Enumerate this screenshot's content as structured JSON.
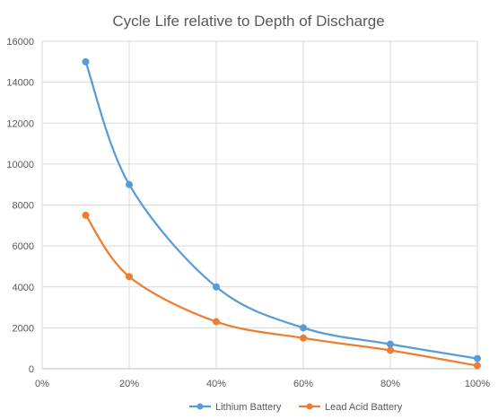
{
  "chart_data": {
    "type": "line",
    "title": "Cycle Life relative to Depth of Discharge",
    "xlabel": "",
    "ylabel": "",
    "x": [
      0.1,
      0.2,
      0.4,
      0.6,
      0.8,
      1.0
    ],
    "xlim": [
      0,
      1.0
    ],
    "x_ticks": [
      0,
      0.2,
      0.4,
      0.6,
      0.8,
      1.0
    ],
    "x_tick_labels": [
      "0%",
      "20%",
      "40%",
      "60%",
      "80%",
      "100%"
    ],
    "ylim": [
      0,
      16000
    ],
    "y_ticks": [
      0,
      2000,
      4000,
      6000,
      8000,
      10000,
      12000,
      14000,
      16000
    ],
    "y_tick_labels": [
      "0",
      "2000",
      "4000",
      "6000",
      "8000",
      "10000",
      "12000",
      "14000",
      "16000"
    ],
    "grid": true,
    "smooth": true,
    "legend_position": "bottom",
    "series": [
      {
        "name": "Lithium Battery",
        "color": "#5b9bd5",
        "values": [
          15000,
          9000,
          4000,
          2000,
          1200,
          500
        ]
      },
      {
        "name": "Lead Acid Battery",
        "color": "#ed7d31",
        "values": [
          7500,
          4500,
          2300,
          1500,
          900,
          150
        ]
      }
    ]
  }
}
